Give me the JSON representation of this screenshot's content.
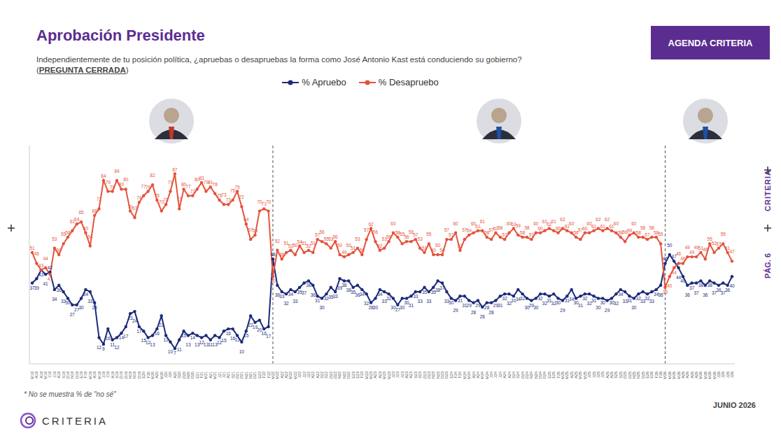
{
  "chart_data": {
    "type": "line",
    "title": "Aprobación Presidente",
    "subtitle": "Independientemente de tu posición política, ¿apruebas o desapruebas la forma como José Antonio Kast está conduciendo su gobierno? (PREGUNTA CERRADA)",
    "brand": "AGENDA CRITERIA",
    "logo": "CRITERIA",
    "page": "PÁG. 6",
    "date": "JUNIO 2026",
    "footnote": "* No se muestra % de \"no sé\"",
    "legend": "top",
    "grid": false,
    "data_labels": true,
    "tick_labels": "x",
    "ylim": [
      0,
      100
    ],
    "yticks": [],
    "dividers": [
      54,
      142
    ],
    "categories": [
      "M18",
      "A18",
      "A18",
      "M18",
      "J18",
      "J18",
      "A18",
      "S18",
      "O18",
      "N18",
      "D18",
      "E19",
      "F19",
      "M19",
      "A19",
      "M19",
      "J19",
      "J19",
      "A19",
      "S19",
      "O19",
      "O19",
      "N19",
      "N19",
      "D19",
      "E20",
      "F20",
      "M20",
      "A20",
      "M20",
      "J20",
      "J20",
      "A20",
      "S20",
      "O20",
      "N20",
      "D20",
      "E21",
      "F21",
      "M21",
      "A21",
      "M21",
      "J21",
      "J21",
      "A21",
      "S21",
      "O21",
      "O21",
      "N21",
      "N21",
      "D21",
      "E22",
      "F22",
      "F22",
      "M22",
      "M22",
      "A22",
      "A22",
      "M22",
      "M22",
      "J22",
      "J22",
      "J22",
      "A22",
      "A22",
      "S22",
      "S22",
      "O22",
      "O22",
      "N22",
      "N22",
      "D22",
      "E23",
      "E23",
      "F23",
      "M23",
      "M23",
      "A23",
      "A23",
      "M23",
      "M23",
      "J23",
      "J23",
      "J23",
      "A23",
      "A23",
      "S23",
      "S23",
      "O23",
      "O23",
      "N23",
      "N23",
      "D23",
      "D23",
      "E24",
      "F24",
      "F24",
      "M24",
      "M24",
      "A24",
      "A24",
      "M24",
      "M24",
      "J24",
      "J24",
      "J24",
      "A24",
      "A24",
      "S24",
      "S24",
      "O24",
      "O24",
      "N24",
      "N24",
      "D24",
      "D24",
      "E25",
      "E25",
      "F25",
      "M25",
      "M25",
      "A25",
      "A25",
      "M25",
      "M25",
      "J25",
      "J25",
      "J25",
      "J25",
      "A25",
      "A25",
      "S25",
      "S25",
      "O25",
      "O25",
      "N25",
      "N25",
      "D25",
      "E26",
      "E26",
      "F26",
      "F26",
      "M26",
      "M26",
      "M26",
      "M26",
      "A26",
      "A26",
      "A26",
      "A26",
      "M26",
      "M26",
      "M26",
      "M26",
      "J26",
      "J26",
      "J26",
      "J26"
    ],
    "series": [
      {
        "name": "% Apruebo",
        "color": "#1b2a7a",
        "marker": "circle",
        "values": [
          37,
          39,
          43,
          41,
          42,
          34,
          36,
          33,
          30,
          27,
          27,
          30,
          34,
          33,
          28,
          12,
          9,
          16,
          11,
          12,
          14,
          17,
          23,
          24,
          17,
          15,
          12,
          13,
          16,
          22,
          13,
          10,
          7,
          11,
          15,
          13,
          14,
          13,
          12,
          13,
          11,
          13,
          12,
          15,
          16,
          16,
          13,
          10,
          15,
          22,
          19,
          20,
          16,
          17,
          48,
          36,
          33,
          32,
          34,
          33,
          35,
          37,
          38,
          36,
          31,
          30,
          32,
          35,
          33,
          39,
          38,
          38,
          35,
          36,
          34,
          32,
          28,
          30,
          34,
          33,
          32,
          30,
          27,
          30,
          30,
          31,
          33,
          33,
          35,
          33,
          35,
          38,
          37,
          33,
          30,
          29,
          31,
          31,
          29,
          28,
          29,
          26,
          28,
          28,
          29,
          31,
          32,
          32,
          31,
          34,
          32,
          30,
          29,
          30,
          32,
          32,
          31,
          32,
          30,
          29,
          31,
          34,
          30,
          31,
          32,
          32,
          31,
          30,
          30,
          29,
          30,
          32,
          34,
          33,
          31,
          30,
          32,
          33,
          32,
          33,
          34,
          36,
          46,
          50,
          47,
          44,
          40,
          36,
          37,
          37,
          38,
          36,
          38,
          37,
          36,
          37,
          36,
          40
        ]
      },
      {
        "name": "% Desapruebo",
        "color": "#e5533d",
        "marker": "circle",
        "values": [
          51,
          46,
          43,
          44,
          41,
          53,
          50,
          55,
          58,
          61,
          64,
          65,
          60,
          54,
          68,
          71,
          84,
          79,
          79,
          84,
          80,
          80,
          70,
          67,
          74,
          77,
          79,
          82,
          75,
          70,
          73,
          79,
          87,
          71,
          80,
          77,
          77,
          80,
          83,
          79,
          81,
          78,
          75,
          73,
          73,
          75,
          79,
          72,
          64,
          57,
          59,
          70,
          71,
          70,
          40,
          52,
          48,
          51,
          52,
          50,
          54,
          51,
          52,
          51,
          57,
          56,
          55,
          53,
          56,
          50,
          49,
          50,
          51,
          53,
          50,
          57,
          62,
          56,
          52,
          53,
          56,
          60,
          58,
          55,
          56,
          56,
          57,
          53,
          51,
          55,
          50,
          50,
          50,
          57,
          57,
          60,
          52,
          57,
          59,
          60,
          61,
          61,
          58,
          57,
          60,
          58,
          57,
          60,
          62,
          59,
          58,
          58,
          57,
          60,
          60,
          61,
          62,
          61,
          60,
          62,
          61,
          60,
          58,
          57,
          60,
          60,
          61,
          62,
          61,
          62,
          61,
          60,
          58,
          56,
          59,
          60,
          58,
          58,
          57,
          58,
          58,
          55,
          35,
          40,
          44,
          46,
          46,
          49,
          49,
          49,
          51,
          48,
          55,
          51,
          53,
          55,
          51,
          47
        ]
      }
    ]
  }
}
